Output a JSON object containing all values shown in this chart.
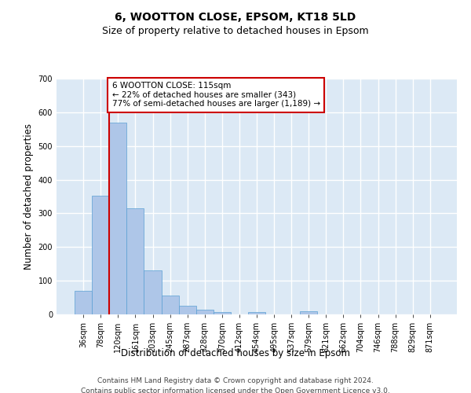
{
  "title": "6, WOOTTON CLOSE, EPSOM, KT18 5LD",
  "subtitle": "Size of property relative to detached houses in Epsom",
  "xlabel": "Distribution of detached houses by size in Epsom",
  "ylabel": "Number of detached properties",
  "categories": [
    "36sqm",
    "78sqm",
    "120sqm",
    "161sqm",
    "203sqm",
    "245sqm",
    "287sqm",
    "328sqm",
    "370sqm",
    "412sqm",
    "454sqm",
    "495sqm",
    "537sqm",
    "579sqm",
    "621sqm",
    "662sqm",
    "704sqm",
    "746sqm",
    "788sqm",
    "829sqm",
    "871sqm"
  ],
  "values": [
    70,
    352,
    570,
    315,
    130,
    57,
    25,
    15,
    8,
    0,
    8,
    0,
    0,
    10,
    0,
    0,
    0,
    0,
    0,
    0,
    0
  ],
  "bar_color": "#aec6e8",
  "bar_edge_color": "#5a9fd4",
  "vline_color": "#cc0000",
  "vline_x_index": 2,
  "annotation_text": "6 WOOTTON CLOSE: 115sqm\n← 22% of detached houses are smaller (343)\n77% of semi-detached houses are larger (1,189) →",
  "annotation_box_color": "#ffffff",
  "annotation_box_edge": "#cc0000",
  "ylim": [
    0,
    700
  ],
  "yticks": [
    0,
    100,
    200,
    300,
    400,
    500,
    600,
    700
  ],
  "background_color": "#dce9f5",
  "grid_color": "#ffffff",
  "footer_line1": "Contains HM Land Registry data © Crown copyright and database right 2024.",
  "footer_line2": "Contains public sector information licensed under the Open Government Licence v3.0.",
  "title_fontsize": 10,
  "subtitle_fontsize": 9,
  "xlabel_fontsize": 8.5,
  "ylabel_fontsize": 8.5,
  "tick_fontsize": 7,
  "footer_fontsize": 6.5,
  "annot_fontsize": 7.5
}
